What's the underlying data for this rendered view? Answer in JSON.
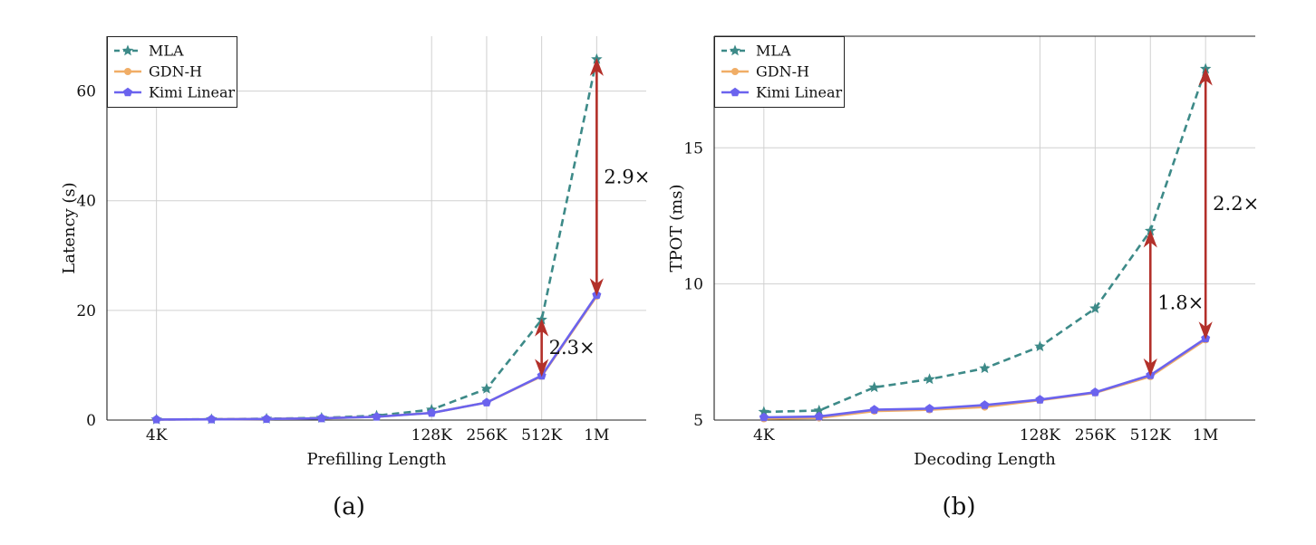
{
  "chart_data": [
    {
      "type": "line",
      "caption": "(a)",
      "xlabel": "Prefilling Length",
      "ylabel": "Latency (s)",
      "x": [
        0,
        1,
        2,
        3,
        4,
        5,
        6,
        7,
        8
      ],
      "xtick_positions": [
        0,
        5,
        6,
        7,
        8
      ],
      "xtick_labels": [
        "4K",
        "128K",
        "256K",
        "512K",
        "1M"
      ],
      "xlim": [
        -0.9,
        8.9
      ],
      "ylim": [
        0,
        70
      ],
      "yticks": [
        0,
        20,
        40,
        60
      ],
      "ytick_labels": [
        "0",
        "20",
        "40",
        "60"
      ],
      "legend_position": "top-left",
      "series": [
        {
          "name": "MLA",
          "style": "dashed",
          "marker": "star",
          "color": "#3d8a88",
          "values": [
            0.1,
            0.15,
            0.25,
            0.4,
            0.8,
            1.9,
            5.7,
            18.3,
            65.8
          ]
        },
        {
          "name": "GDN-H",
          "style": "solid",
          "marker": "circle",
          "color": "#f0ad66",
          "values": [
            0.1,
            0.14,
            0.2,
            0.32,
            0.6,
            1.3,
            3.2,
            8.0,
            22.6
          ]
        },
        {
          "name": "Kimi Linear",
          "style": "solid",
          "marker": "pentagon",
          "color": "#6b63ee",
          "values": [
            0.1,
            0.14,
            0.2,
            0.32,
            0.6,
            1.3,
            3.2,
            8.1,
            22.8
          ]
        }
      ],
      "annotations": [
        {
          "text": "2.9×",
          "x": 8,
          "y_from": 22.8,
          "y_to": 65.8
        },
        {
          "text": "2.3×",
          "x": 7,
          "y_from": 8.1,
          "y_to": 18.3
        }
      ]
    },
    {
      "type": "line",
      "caption": "(b)",
      "xlabel": "Decoding Length",
      "ylabel": "TPOT (ms)",
      "x": [
        0,
        1,
        2,
        3,
        4,
        5,
        6,
        7,
        8
      ],
      "xtick_positions": [
        0,
        5,
        6,
        7,
        8
      ],
      "xtick_labels": [
        "4K",
        "128K",
        "256K",
        "512K",
        "1M"
      ],
      "xlim": [
        -0.9,
        8.9
      ],
      "ylim": [
        5,
        19.1
      ],
      "yticks": [
        5,
        10,
        15
      ],
      "ytick_labels": [
        "5",
        "10",
        "15"
      ],
      "legend_position": "top-left",
      "series": [
        {
          "name": "MLA",
          "style": "dashed",
          "marker": "star",
          "color": "#3d8a88",
          "values": [
            5.3,
            5.35,
            6.2,
            6.5,
            6.9,
            7.7,
            9.1,
            11.95,
            17.9
          ]
        },
        {
          "name": "GDN-H",
          "style": "solid",
          "marker": "circle",
          "color": "#f0ad66",
          "values": [
            5.05,
            5.08,
            5.33,
            5.38,
            5.48,
            5.73,
            6.0,
            6.6,
            7.95
          ]
        },
        {
          "name": "Kimi Linear",
          "style": "solid",
          "marker": "pentagon",
          "color": "#6b63ee",
          "values": [
            5.1,
            5.13,
            5.38,
            5.42,
            5.55,
            5.75,
            6.02,
            6.65,
            8.0
          ]
        }
      ],
      "annotations": [
        {
          "text": "2.2×",
          "x": 8,
          "y_from": 8.0,
          "y_to": 17.9
        },
        {
          "text": "1.8×",
          "x": 7,
          "y_from": 6.65,
          "y_to": 11.95
        }
      ]
    }
  ],
  "colors": {
    "arrow": "#b3302a",
    "grid": "#d0d0d0"
  }
}
